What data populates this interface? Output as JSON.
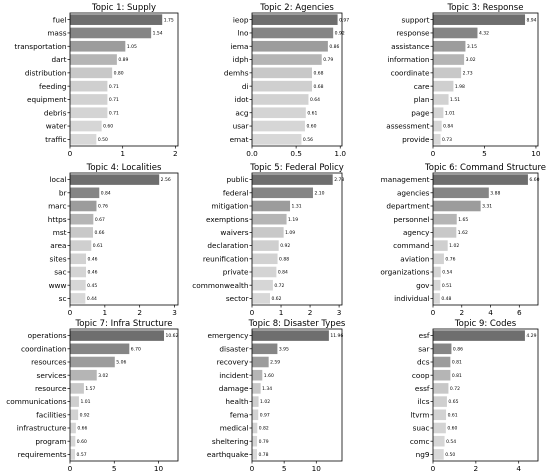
{
  "chart_data": [
    {
      "type": "bar",
      "orientation": "horizontal",
      "title": "Topic 1: Supply",
      "categories": [
        "fuel",
        "mass",
        "transportation",
        "dart",
        "distribution",
        "feeding",
        "equipment",
        "debris",
        "water",
        "traffic"
      ],
      "values": [
        1.75,
        1.54,
        1.05,
        0.89,
        0.8,
        0.71,
        0.71,
        0.71,
        0.6,
        0.5
      ],
      "labels": [
        "1.75",
        "1.54",
        "1.05",
        "0.89",
        "0.80",
        "0.71",
        "0.71",
        "0.71",
        "0.60",
        "0.50"
      ],
      "xlim": [
        0,
        2.05
      ],
      "xticks": [
        "0",
        "1",
        "2"
      ],
      "xtick_values": [
        0,
        1,
        2
      ],
      "grid": false
    },
    {
      "type": "bar",
      "orientation": "horizontal",
      "title": "Topic 2: Agencies",
      "categories": [
        "ieop",
        "lno",
        "iema",
        "idph",
        "demhs",
        "di",
        "idot",
        "acg",
        "usar",
        "emat"
      ],
      "values": [
        0.97,
        0.92,
        0.86,
        0.79,
        0.68,
        0.68,
        0.64,
        0.61,
        0.6,
        0.56
      ],
      "labels": [
        "0.97",
        "0.92",
        "0.86",
        "0.79",
        "0.68",
        "0.68",
        "0.64",
        "0.61",
        "0.60",
        "0.56"
      ],
      "xlim": [
        0,
        1.02
      ],
      "xticks": [
        "0.0",
        "0.5",
        "1.0"
      ],
      "xtick_values": [
        0,
        0.5,
        1.0
      ],
      "grid": false
    },
    {
      "type": "bar",
      "orientation": "horizontal",
      "title": "Topic 3: Response",
      "categories": [
        "support",
        "response",
        "assistance",
        "information",
        "coordinate",
        "care",
        "plan",
        "page",
        "assessment",
        "provide"
      ],
      "values": [
        8.94,
        4.32,
        3.15,
        3.02,
        2.73,
        1.98,
        1.51,
        1.01,
        0.84,
        0.73
      ],
      "labels": [
        "8.94",
        "4.32",
        "3.15",
        "3.02",
        "2.73",
        "1.98",
        "1.51",
        "1.01",
        "0.84",
        "0.73"
      ],
      "xlim": [
        0,
        10.2
      ],
      "xticks": [
        "0",
        "5",
        "10"
      ],
      "xtick_values": [
        0,
        5,
        10
      ],
      "grid": false
    },
    {
      "type": "bar",
      "orientation": "horizontal",
      "title": "Topic 4: Localities",
      "categories": [
        "local",
        "br",
        "marc",
        "https",
        "mst",
        "area",
        "sites",
        "sac",
        "www",
        "sc"
      ],
      "values": [
        2.56,
        0.84,
        0.76,
        0.67,
        0.66,
        0.61,
        0.46,
        0.46,
        0.45,
        0.44
      ],
      "labels": [
        "2.56",
        "0.84",
        "0.76",
        "0.67",
        "0.66",
        "0.61",
        "0.46",
        "0.46",
        "0.45",
        "0.44"
      ],
      "xlim": [
        0,
        3.1
      ],
      "xticks": [
        "0",
        "1",
        "2",
        "3"
      ],
      "xtick_values": [
        0,
        1,
        2,
        3
      ],
      "grid": false
    },
    {
      "type": "bar",
      "orientation": "horizontal",
      "title": "Topic 5: Federal Policy",
      "categories": [
        "public",
        "federal",
        "mitigation",
        "exemptions",
        "waivers",
        "declaration",
        "reunification",
        "private",
        "commonwealth",
        "sector"
      ],
      "values": [
        2.78,
        2.1,
        1.31,
        1.19,
        1.09,
        0.92,
        0.88,
        0.84,
        0.72,
        0.62
      ],
      "labels": [
        "2.78",
        "2.10",
        "1.31",
        "1.19",
        "1.09",
        "0.92",
        "0.88",
        "0.84",
        "0.72",
        "0.62"
      ],
      "xlim": [
        0,
        3.1
      ],
      "xticks": [
        "0",
        "1",
        "2",
        "3"
      ],
      "xtick_values": [
        0,
        1,
        2,
        3
      ],
      "grid": false
    },
    {
      "type": "bar",
      "orientation": "horizontal",
      "title": "Topic 6: Command Structure",
      "categories": [
        "management",
        "agencies",
        "department",
        "personnel",
        "agency",
        "command",
        "aviation",
        "organizations",
        "gov",
        "individual"
      ],
      "values": [
        6.6,
        3.88,
        3.31,
        1.65,
        1.62,
        1.02,
        0.76,
        0.54,
        0.51,
        0.48
      ],
      "labels": [
        "6.60",
        "3.88",
        "3.31",
        "1.65",
        "1.62",
        "1.02",
        "0.76",
        "0.54",
        "0.51",
        "0.48"
      ],
      "xlim": [
        0,
        7.3
      ],
      "xticks": [
        "0",
        "2",
        "4",
        "6"
      ],
      "xtick_values": [
        0,
        2,
        4,
        6
      ],
      "grid": false
    },
    {
      "type": "bar",
      "orientation": "horizontal",
      "title": "Topic 7: Infra Structure",
      "categories": [
        "operations",
        "coordination",
        "resources",
        "services",
        "resource",
        "communications",
        "facilities",
        "infrastructure",
        "program",
        "requirements"
      ],
      "values": [
        10.62,
        6.7,
        5.06,
        3.02,
        1.57,
        1.01,
        0.92,
        0.66,
        0.6,
        0.57
      ],
      "labels": [
        "10.62",
        "6.70",
        "5.06",
        "3.02",
        "1.57",
        "1.01",
        "0.92",
        "0.66",
        "0.60",
        "0.57"
      ],
      "xlim": [
        0,
        12.2
      ],
      "xticks": [
        "0",
        "5",
        "10"
      ],
      "xtick_values": [
        0,
        5,
        10
      ],
      "grid": false
    },
    {
      "type": "bar",
      "orientation": "horizontal",
      "title": "Topic 8: Disaster Types",
      "categories": [
        "emergency",
        "disaster",
        "recovery",
        "incident",
        "damage",
        "health",
        "fema",
        "medical",
        "sheltering",
        "earthquake"
      ],
      "values": [
        11.96,
        3.95,
        2.59,
        1.6,
        1.34,
        1.02,
        0.97,
        0.82,
        0.79,
        0.78
      ],
      "labels": [
        "11.96",
        "3.95",
        "2.59",
        "1.60",
        "1.34",
        "1.02",
        "0.97",
        "0.82",
        "0.79",
        "0.78"
      ],
      "xlim": [
        0,
        14.0
      ],
      "xticks": [
        "0",
        "5",
        "10"
      ],
      "xtick_values": [
        0,
        5,
        10
      ],
      "grid": false
    },
    {
      "type": "bar",
      "orientation": "horizontal",
      "title": "Topic 9: Codes",
      "categories": [
        "esf",
        "sar",
        "dcs",
        "coop",
        "essf",
        "ilcs",
        "ltvrm",
        "suac",
        "comc",
        "ng9"
      ],
      "values": [
        4.29,
        0.86,
        0.81,
        0.81,
        0.72,
        0.65,
        0.61,
        0.6,
        0.54,
        0.5
      ],
      "labels": [
        "4.29",
        "0.86",
        "0.81",
        "0.81",
        "0.72",
        "0.65",
        "0.61",
        "0.60",
        "0.54",
        "0.50"
      ],
      "xlim": [
        0,
        4.9
      ],
      "xticks": [
        "0",
        "2",
        "4"
      ],
      "xtick_values": [
        0,
        2,
        4
      ],
      "grid": false
    }
  ],
  "colors": {
    "ramp": [
      "#6e6e6e",
      "#858585",
      "#9c9c9c",
      "#b5b5b5",
      "#c8c8c8",
      "#cfcfcf",
      "#d2d2d2",
      "#d4d4d4",
      "#d6d6d6",
      "#d8d8d8"
    ]
  }
}
